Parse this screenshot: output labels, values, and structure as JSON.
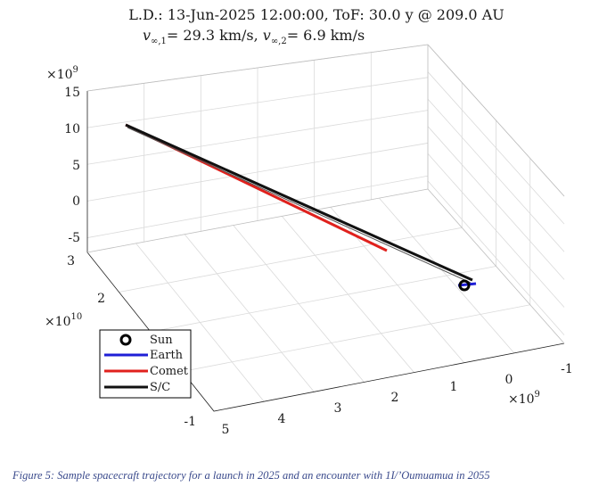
{
  "chart_data": {
    "type": "line",
    "title_line1": "L.D.: 13-Jun-2025 12:00:00, ToF: 30.0 y @ 209.0 AU",
    "title_line2_parts": [
      "v",
      "∞,1",
      "= 29.3 km/s, ",
      "v",
      "∞,2",
      "= 6.9 km/s"
    ],
    "z_axis": {
      "multiplier": "×10",
      "exp": "9",
      "ticks": [
        "15",
        "10",
        "5",
        "0",
        "-5"
      ]
    },
    "y_axis": {
      "multiplier": "×10",
      "exp": "10",
      "ticks": [
        "3",
        "2",
        "-1"
      ]
    },
    "x_axis": {
      "multiplier": "×10",
      "exp": "9",
      "ticks": [
        "5",
        "4",
        "3",
        "2",
        "1",
        "0",
        "-1"
      ]
    },
    "legend": [
      {
        "label": "Sun",
        "marker": "circle",
        "color": "#000000"
      },
      {
        "label": "Earth",
        "marker": "line",
        "color": "#1f1fd6"
      },
      {
        "label": "Comet",
        "marker": "line",
        "color": "#e0211d"
      },
      {
        "label": "S/C",
        "marker": "line",
        "color": "#111111"
      }
    ],
    "series": [
      {
        "name": "Comet",
        "color": "#e0211d"
      },
      {
        "name": "S/C",
        "color": "#111111"
      },
      {
        "name": "Earth",
        "color": "#1f1fd6"
      }
    ]
  },
  "caption": "Figure 5: Sample spacecraft trajectory for a launch in 2025 and an encounter with 1I/’Oumuamua in 2055"
}
